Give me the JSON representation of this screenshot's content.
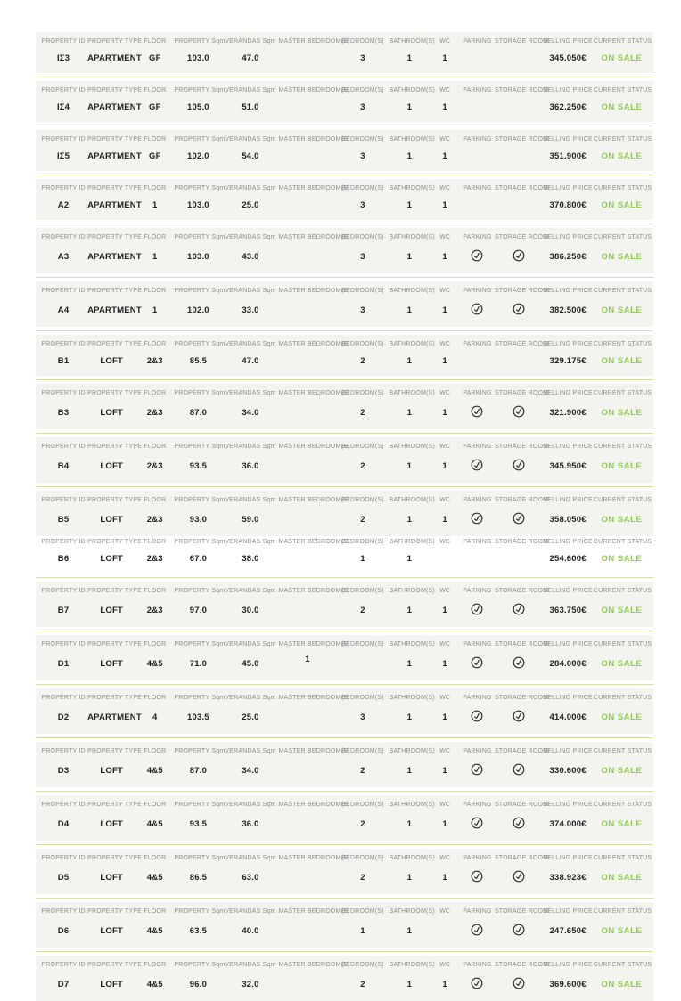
{
  "colors": {
    "status_green": "#8ecb52",
    "divider_green": "#cfe0ab",
    "band_bg": "#f3f3f0",
    "header_text": "#8d8d8d",
    "data_text": "#222222",
    "icon_stroke": "#2b2b2b"
  },
  "icons": {
    "check": "check-circle-icon"
  },
  "table": {
    "columns": [
      {
        "key": "property_id",
        "label": "PROPERTY ID"
      },
      {
        "key": "property_type",
        "label": "PROPERTY TYPE"
      },
      {
        "key": "floor",
        "label": "FLOOR"
      },
      {
        "key": "property_sqm",
        "label": "PROPERTY Sqm"
      },
      {
        "key": "verandas_sqm",
        "label": "VERANDAS Sqm"
      },
      {
        "key": "master_bedrooms",
        "label": "MASTER BEDROOM(S)"
      },
      {
        "key": "bedrooms",
        "label": "BEDROOM(S)"
      },
      {
        "key": "bathrooms",
        "label": "BATHROOM(S)"
      },
      {
        "key": "wc",
        "label": "WC"
      },
      {
        "key": "parking",
        "label": "PARKING"
      },
      {
        "key": "storage_room",
        "label": "STORAGE ROOM"
      },
      {
        "key": "selling_price",
        "label": "SELLING PRICE"
      },
      {
        "key": "current_status",
        "label": "CURRENT STATUS"
      }
    ],
    "rows": [
      {
        "property_id": "ΙΣ3",
        "property_type": "APARTMENT",
        "floor": "GF",
        "property_sqm": "103.0",
        "verandas_sqm": "47.0",
        "master_bedrooms": "",
        "bedrooms": "3",
        "bathrooms": "1",
        "wc": "1",
        "parking": false,
        "storage_room": false,
        "selling_price": "345.050€",
        "current_status": "ON SALE"
      },
      {
        "property_id": "ΙΣ4",
        "property_type": "APARTMENT",
        "floor": "GF",
        "property_sqm": "105.0",
        "verandas_sqm": "51.0",
        "master_bedrooms": "",
        "bedrooms": "3",
        "bathrooms": "1",
        "wc": "1",
        "parking": false,
        "storage_room": false,
        "selling_price": "362.250€",
        "current_status": "ON SALE"
      },
      {
        "property_id": "ΙΣ5",
        "property_type": "APARTMENT",
        "floor": "GF",
        "property_sqm": "102.0",
        "verandas_sqm": "54.0",
        "master_bedrooms": "",
        "bedrooms": "3",
        "bathrooms": "1",
        "wc": "1",
        "parking": false,
        "storage_room": false,
        "selling_price": "351.900€",
        "current_status": "ON SALE"
      },
      {
        "property_id": "A2",
        "property_type": "APARTMENT",
        "floor": "1",
        "property_sqm": "103.0",
        "verandas_sqm": "25.0",
        "master_bedrooms": "",
        "bedrooms": "3",
        "bathrooms": "1",
        "wc": "1",
        "parking": false,
        "storage_room": false,
        "selling_price": "370.800€",
        "current_status": "ON SALE"
      },
      {
        "property_id": "A3",
        "property_type": "APARTMENT",
        "floor": "1",
        "property_sqm": "103.0",
        "verandas_sqm": "43.0",
        "master_bedrooms": "",
        "bedrooms": "3",
        "bathrooms": "1",
        "wc": "1",
        "parking": true,
        "storage_room": true,
        "selling_price": "386.250€",
        "current_status": "ON SALE"
      },
      {
        "property_id": "A4",
        "property_type": "APARTMENT",
        "floor": "1",
        "property_sqm": "102.0",
        "verandas_sqm": "33.0",
        "master_bedrooms": "",
        "bedrooms": "3",
        "bathrooms": "1",
        "wc": "1",
        "parking": true,
        "storage_room": true,
        "selling_price": "382.500€",
        "current_status": "ON SALE"
      },
      {
        "property_id": "B1",
        "property_type": "LOFT",
        "floor": "2&3",
        "property_sqm": "85.5",
        "verandas_sqm": "47.0",
        "master_bedrooms": "",
        "bedrooms": "2",
        "bathrooms": "1",
        "wc": "1",
        "parking": false,
        "storage_room": false,
        "selling_price": "329.175€",
        "current_status": "ON SALE"
      },
      {
        "property_id": "B3",
        "property_type": "LOFT",
        "floor": "2&3",
        "property_sqm": "87.0",
        "verandas_sqm": "34.0",
        "master_bedrooms": "",
        "bedrooms": "2",
        "bathrooms": "1",
        "wc": "1",
        "parking": true,
        "storage_room": true,
        "selling_price": "321.900€",
        "current_status": "ON SALE"
      },
      {
        "property_id": "B4",
        "property_type": "LOFT",
        "floor": "2&3",
        "property_sqm": "93.5",
        "verandas_sqm": "36.0",
        "master_bedrooms": "",
        "bedrooms": "2",
        "bathrooms": "1",
        "wc": "1",
        "parking": true,
        "storage_room": true,
        "selling_price": "345.950€",
        "current_status": "ON SALE"
      },
      {
        "property_id": "B5",
        "property_type": "LOFT",
        "floor": "2&3",
        "property_sqm": "93.0",
        "verandas_sqm": "59.0",
        "master_bedrooms": "",
        "bedrooms": "2",
        "bathrooms": "1",
        "wc": "1",
        "parking": true,
        "storage_room": true,
        "selling_price": "358.050€",
        "current_status": "ON SALE",
        "divider_after": false
      },
      {
        "property_id": "B6",
        "property_type": "LOFT",
        "floor": "2&3",
        "property_sqm": "67.0",
        "verandas_sqm": "38.0",
        "master_bedrooms": "",
        "bedrooms": "1",
        "bathrooms": "1",
        "wc": "",
        "parking": false,
        "storage_room": false,
        "selling_price": "254.600€",
        "current_status": "ON SALE",
        "plain_background": true
      },
      {
        "property_id": "B7",
        "property_type": "LOFT",
        "floor": "2&3",
        "property_sqm": "97.0",
        "verandas_sqm": "30.0",
        "master_bedrooms": "",
        "bedrooms": "2",
        "bathrooms": "1",
        "wc": "1",
        "parking": true,
        "storage_room": true,
        "selling_price": "363.750€",
        "current_status": "ON SALE"
      },
      {
        "property_id": "D1",
        "property_type": "LOFT",
        "floor": "4&5",
        "property_sqm": "71.0",
        "verandas_sqm": "45.0",
        "master_bedrooms": "1",
        "bedrooms": "",
        "bathrooms": "1",
        "wc": "1",
        "parking": true,
        "storage_room": true,
        "selling_price": "284.000€",
        "current_status": "ON SALE"
      },
      {
        "property_id": "D2",
        "property_type": "APARTMENT",
        "floor": "4",
        "property_sqm": "103.5",
        "verandas_sqm": "25.0",
        "master_bedrooms": "",
        "bedrooms": "3",
        "bathrooms": "1",
        "wc": "1",
        "parking": true,
        "storage_room": true,
        "selling_price": "414.000€",
        "current_status": "ON SALE"
      },
      {
        "property_id": "D3",
        "property_type": "LOFT",
        "floor": "4&5",
        "property_sqm": "87.0",
        "verandas_sqm": "34.0",
        "master_bedrooms": "",
        "bedrooms": "2",
        "bathrooms": "1",
        "wc": "1",
        "parking": true,
        "storage_room": true,
        "selling_price": "330.600€",
        "current_status": "ON SALE"
      },
      {
        "property_id": "D4",
        "property_type": "LOFT",
        "floor": "4&5",
        "property_sqm": "93.5",
        "verandas_sqm": "36.0",
        "master_bedrooms": "",
        "bedrooms": "2",
        "bathrooms": "1",
        "wc": "1",
        "parking": true,
        "storage_room": true,
        "selling_price": "374.000€",
        "current_status": "ON SALE"
      },
      {
        "property_id": "D5",
        "property_type": "LOFT",
        "floor": "4&5",
        "property_sqm": "86.5",
        "verandas_sqm": "63.0",
        "master_bedrooms": "",
        "bedrooms": "2",
        "bathrooms": "1",
        "wc": "1",
        "parking": true,
        "storage_room": true,
        "selling_price": "338.923€",
        "current_status": "ON SALE"
      },
      {
        "property_id": "D6",
        "property_type": "LOFT",
        "floor": "4&5",
        "property_sqm": "63.5",
        "verandas_sqm": "40.0",
        "master_bedrooms": "",
        "bedrooms": "1",
        "bathrooms": "1",
        "wc": "",
        "parking": true,
        "storage_room": true,
        "selling_price": "247.650€",
        "current_status": "ON SALE"
      },
      {
        "property_id": "D7",
        "property_type": "LOFT",
        "floor": "4&5",
        "property_sqm": "96.0",
        "verandas_sqm": "32.0",
        "master_bedrooms": "",
        "bedrooms": "2",
        "bathrooms": "1",
        "wc": "1",
        "parking": true,
        "storage_room": true,
        "selling_price": "369.600€",
        "current_status": "ON SALE"
      }
    ]
  }
}
